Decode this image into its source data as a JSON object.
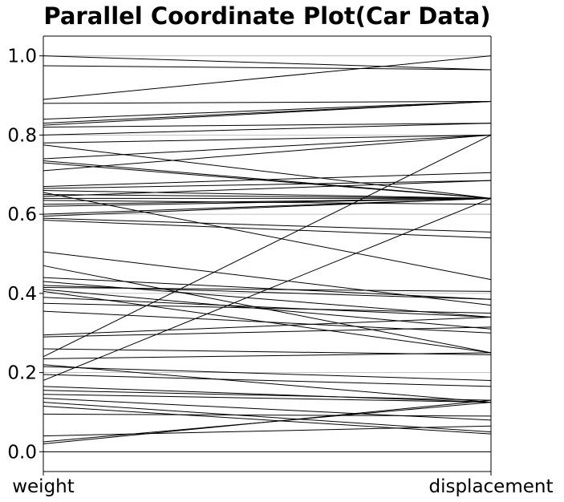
{
  "chart_data": {
    "type": "line",
    "variant": "parallel-coordinates",
    "title": "Parallel Coordinate Plot(Car Data)",
    "axes": [
      "weight",
      "displacement"
    ],
    "ylim": [
      -0.05,
      1.05
    ],
    "yticks": [
      "0.0",
      "0.2",
      "0.4",
      "0.6",
      "0.8",
      "1.0"
    ],
    "grid": "horizontal",
    "line_color": "#000000",
    "lines": [
      [
        1.0,
        0.965
      ],
      [
        0.975,
        0.965
      ],
      [
        0.89,
        1.0
      ],
      [
        0.88,
        0.885
      ],
      [
        0.84,
        0.885
      ],
      [
        0.83,
        0.885
      ],
      [
        0.825,
        0.885
      ],
      [
        0.82,
        0.83
      ],
      [
        0.8,
        0.83
      ],
      [
        0.78,
        0.8
      ],
      [
        0.775,
        0.64
      ],
      [
        0.74,
        0.8
      ],
      [
        0.735,
        0.64
      ],
      [
        0.73,
        0.64
      ],
      [
        0.71,
        0.8
      ],
      [
        0.67,
        0.705
      ],
      [
        0.665,
        0.685
      ],
      [
        0.66,
        0.64
      ],
      [
        0.655,
        0.435
      ],
      [
        0.65,
        0.64
      ],
      [
        0.645,
        0.685
      ],
      [
        0.64,
        0.64
      ],
      [
        0.635,
        0.625
      ],
      [
        0.625,
        0.64
      ],
      [
        0.62,
        0.64
      ],
      [
        0.6,
        0.64
      ],
      [
        0.595,
        0.64
      ],
      [
        0.59,
        0.555
      ],
      [
        0.585,
        0.54
      ],
      [
        0.505,
        0.37
      ],
      [
        0.47,
        0.25
      ],
      [
        0.44,
        0.385
      ],
      [
        0.43,
        0.34
      ],
      [
        0.42,
        0.385
      ],
      [
        0.415,
        0.405
      ],
      [
        0.41,
        0.31
      ],
      [
        0.405,
        0.25
      ],
      [
        0.39,
        0.34
      ],
      [
        0.375,
        0.35
      ],
      [
        0.355,
        0.3
      ],
      [
        0.295,
        0.34
      ],
      [
        0.29,
        0.315
      ],
      [
        0.26,
        0.245
      ],
      [
        0.24,
        0.8
      ],
      [
        0.235,
        0.25
      ],
      [
        0.22,
        0.125
      ],
      [
        0.215,
        0.18
      ],
      [
        0.195,
        0.165
      ],
      [
        0.18,
        0.64
      ],
      [
        0.165,
        0.125
      ],
      [
        0.155,
        0.13
      ],
      [
        0.145,
        0.125
      ],
      [
        0.135,
        0.08
      ],
      [
        0.125,
        0.05
      ],
      [
        0.115,
        0.045
      ],
      [
        0.095,
        0.09
      ],
      [
        0.04,
        0.065
      ],
      [
        0.025,
        0.125
      ],
      [
        0.02,
        0.13
      ],
      [
        0.0,
        0.0
      ]
    ]
  }
}
